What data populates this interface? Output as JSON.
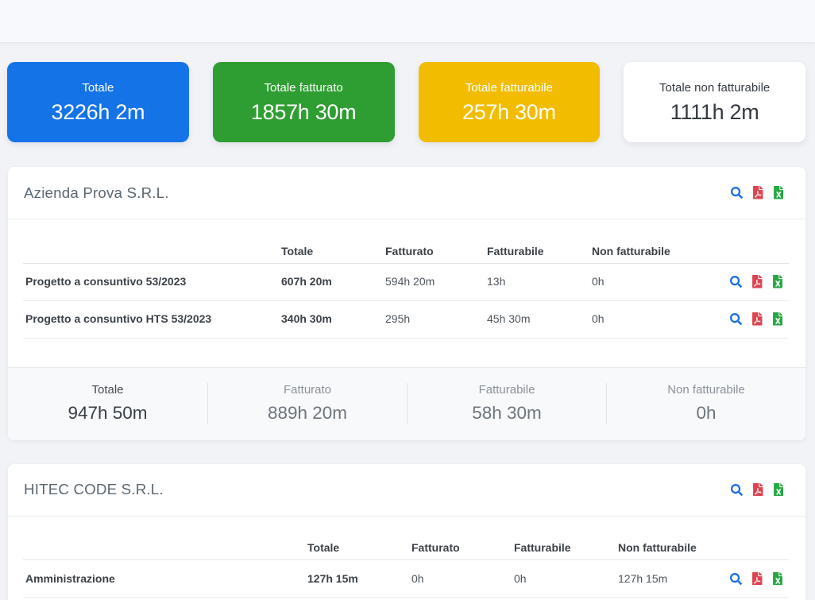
{
  "topbar": {},
  "summary_cards": [
    {
      "label": "Totale",
      "value": "3226h 2m",
      "background": "#1573e8",
      "text_color": "#ffffff"
    },
    {
      "label": "Totale fatturato",
      "value": "1857h 30m",
      "background": "#2f9e32",
      "text_color": "#ffffff"
    },
    {
      "label": "Totale fatturabile",
      "value": "257h 30m",
      "background": "#f2bc00",
      "text_color": "#ffffff"
    },
    {
      "label": "Totale non fatturabile",
      "value": "1111h 2m",
      "background": "#ffffff",
      "text_color": "#343a40"
    }
  ],
  "action_icons": {
    "search": {
      "name": "search",
      "color": "#1a6fe8"
    },
    "pdf": {
      "name": "file-pdf",
      "color": "#dc4550"
    },
    "excel": {
      "name": "file-excel",
      "color": "#28a745"
    }
  },
  "panels": [
    {
      "title": "Azienda Prova S.R.L.",
      "columns": [
        "",
        "Totale",
        "Fatturato",
        "Fatturabile",
        "Non fatturabile",
        ""
      ],
      "rows": [
        {
          "name": "Progetto a consuntivo 53/2023",
          "totale": "607h 20m",
          "fatturato": "594h 20m",
          "fatturabile": "13h",
          "non_fatturabile": "0h"
        },
        {
          "name": "Progetto a consuntivo HTS 53/2023",
          "totale": "340h 30m",
          "fatturato": "295h",
          "fatturabile": "45h 30m",
          "non_fatturabile": "0h"
        }
      ],
      "footer": [
        {
          "label": "Totale",
          "value": "947h 50m",
          "emphasis": true
        },
        {
          "label": "Fatturato",
          "value": "889h 20m",
          "emphasis": false
        },
        {
          "label": "Fatturabile",
          "value": "58h 30m",
          "emphasis": false
        },
        {
          "label": "Non fatturabile",
          "value": "0h",
          "emphasis": false
        }
      ]
    },
    {
      "title": "HITEC CODE S.R.L.",
      "columns": [
        "",
        "Totale",
        "Fatturato",
        "Fatturabile",
        "Non fatturabile",
        ""
      ],
      "rows": [
        {
          "name": "Amministrazione",
          "totale": "127h 15m",
          "fatturato": "0h",
          "fatturabile": "0h",
          "non_fatturabile": "127h 15m"
        }
      ],
      "footer": null
    }
  ]
}
